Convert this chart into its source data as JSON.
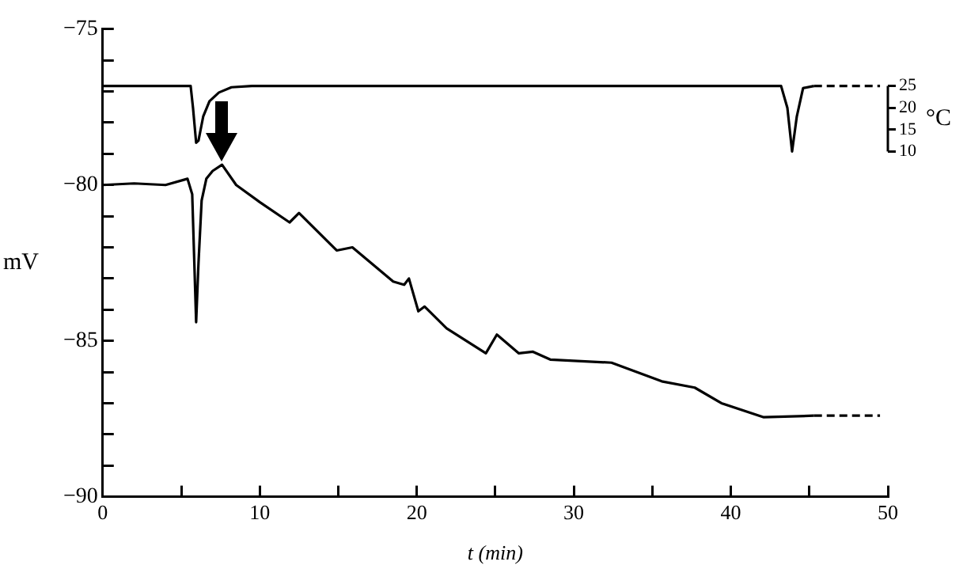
{
  "chart_data": {
    "type": "line",
    "xlabel": "t (min)",
    "ylabel": "mV",
    "y2label": "°C",
    "xlim": [
      0,
      50
    ],
    "xticks": [
      0,
      {
        "value": 5,
        "label": null
      },
      10,
      {
        "value": 15,
        "label": null
      },
      20,
      {
        "value": 25,
        "label": null
      },
      30,
      {
        "value": 35,
        "label": null
      },
      40,
      {
        "value": 45,
        "label": null
      },
      50
    ],
    "ylim": [
      -90,
      -75
    ],
    "yticks": [
      -90,
      {
        "value": -89,
        "label": null
      },
      {
        "value": -88,
        "label": null
      },
      {
        "value": -87,
        "label": null
      },
      {
        "value": -86,
        "label": null
      },
      -85,
      {
        "value": -84,
        "label": null
      },
      {
        "value": -83,
        "label": null
      },
      {
        "value": -82,
        "label": null
      },
      {
        "value": -81,
        "label": null
      },
      -80,
      {
        "value": -79,
        "label": null
      },
      {
        "value": -78,
        "label": null
      },
      {
        "value": -77,
        "label": null
      },
      {
        "value": -76,
        "label": null
      },
      -75
    ],
    "y2lim": [
      -69,
      38
    ],
    "y2ticks": [
      10,
      15,
      20,
      25
    ],
    "grid": false,
    "legend": false,
    "marker": "none",
    "series": [
      {
        "color": "#000000",
        "axis": "y2",
        "line_style": "solid",
        "x": [
          0,
          5.6,
          5.75,
          5.95,
          6.1,
          6.4,
          6.8,
          7.4,
          8.2,
          9.5,
          43.2,
          43.6,
          43.9,
          44.2,
          44.6,
          45.3
        ],
        "values": [
          25,
          25,
          20,
          12,
          12.5,
          18,
          21.5,
          23.5,
          24.7,
          25,
          25,
          20,
          10,
          18,
          24.5,
          25
        ]
      },
      {
        "color": "#000000",
        "axis": "y2",
        "line_style": "dashed",
        "x": [
          45.3,
          49.5
        ],
        "values": [
          25,
          25
        ]
      },
      {
        "color": "#000000",
        "line_style": "solid",
        "x": [
          0,
          2,
          4,
          5.4,
          5.7,
          5.95,
          6.1,
          6.3,
          6.6,
          7.0,
          7.6,
          8.5,
          10.0,
          11.9,
          12.5,
          14.9,
          15.9,
          18.5,
          19.2,
          19.5,
          20.1,
          20.5,
          21.9,
          24.4,
          25.1,
          26.5,
          27.4,
          28.5,
          32.4,
          35.6,
          37.7,
          39.4,
          42.1,
          45.3
        ],
        "values": [
          -80.0,
          -79.95,
          -80.0,
          -79.8,
          -80.3,
          -84.4,
          -82.5,
          -80.5,
          -79.8,
          -79.55,
          -79.35,
          -80.0,
          -80.55,
          -81.2,
          -80.9,
          -82.1,
          -82.0,
          -83.1,
          -83.2,
          -83.0,
          -84.05,
          -83.9,
          -84.6,
          -85.4,
          -84.8,
          -85.4,
          -85.35,
          -85.6,
          -85.7,
          -86.3,
          -86.5,
          -87.0,
          -87.45,
          -87.4
        ]
      },
      {
        "color": "#000000",
        "line_style": "dashed",
        "x": [
          45.3,
          49.5
        ],
        "values": [
          -87.4,
          -87.4
        ]
      }
    ]
  }
}
